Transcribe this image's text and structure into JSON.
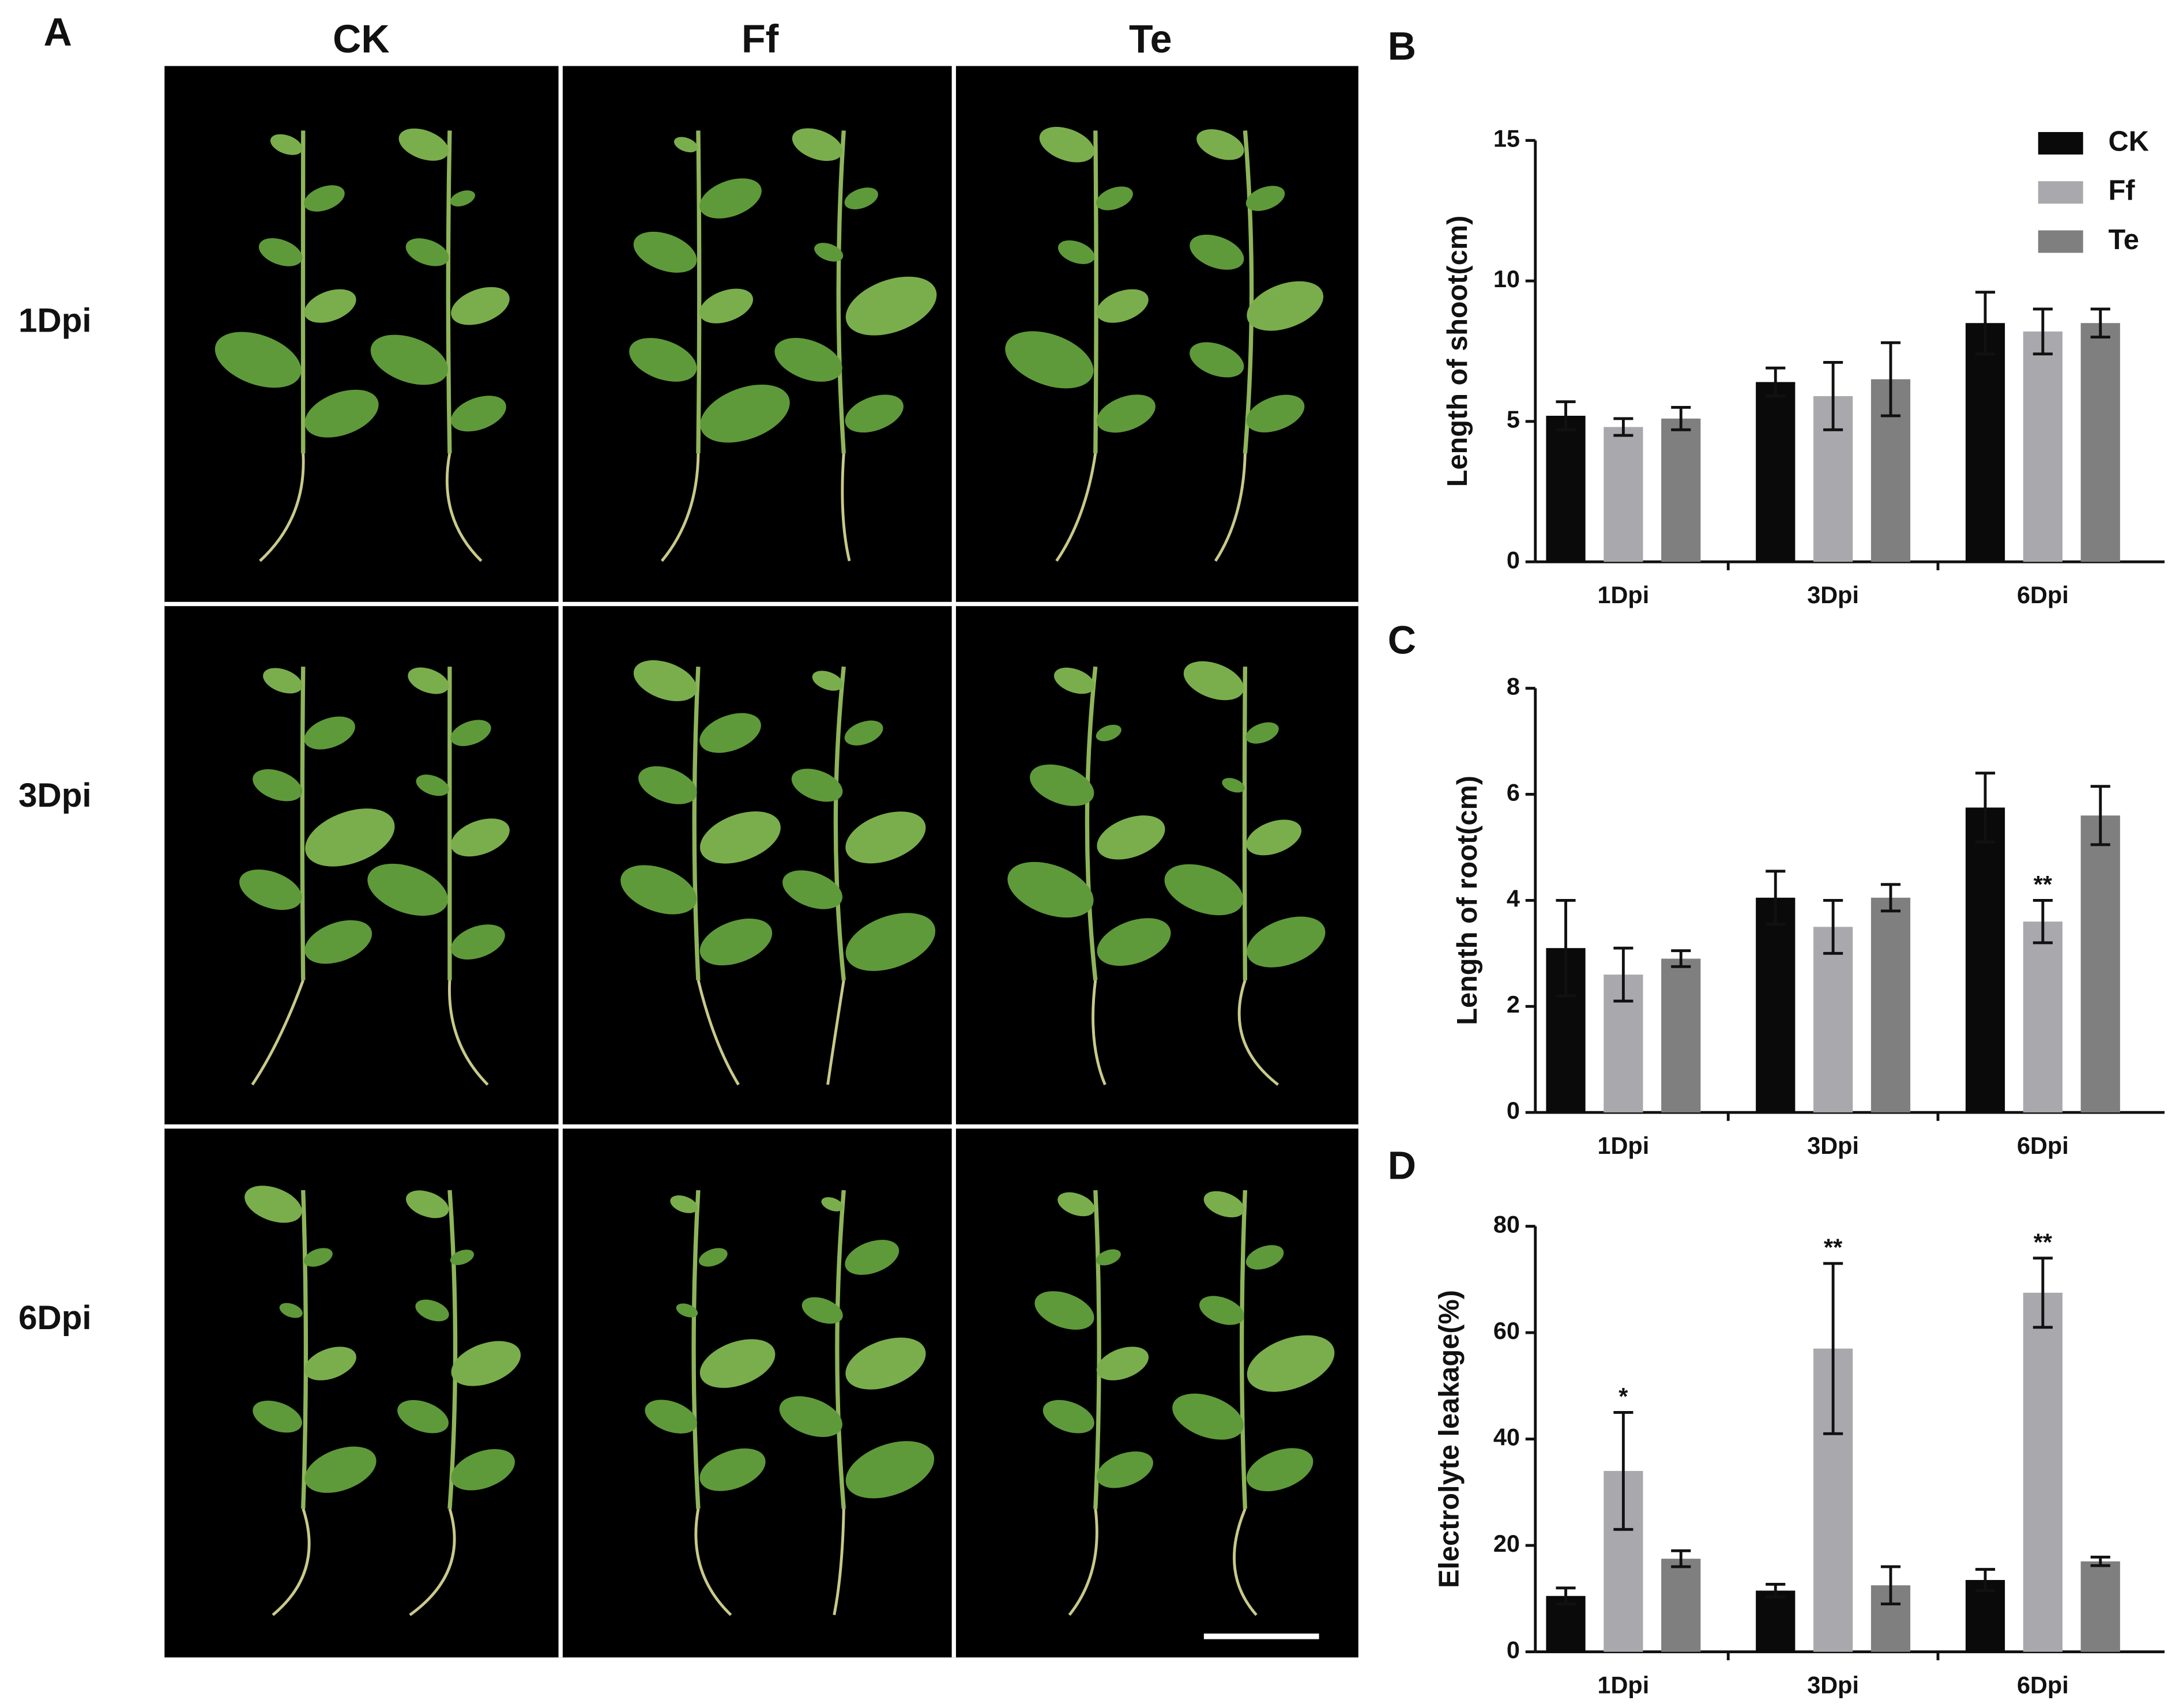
{
  "panel_a": {
    "label": "A",
    "columns": [
      "CK",
      "Ff",
      "Te"
    ],
    "rows": [
      "1Dpi",
      "3Dpi",
      "6Dpi"
    ]
  },
  "chart_data": [
    {
      "type": "bar",
      "label": "B",
      "y_label": "Length of shoot(cm)",
      "categories": [
        "1Dpi",
        "3Dpi",
        "6Dpi"
      ],
      "series": [
        {
          "name": "CK",
          "color": "#0a0a0a",
          "values": [
            5.2,
            6.4,
            8.5
          ],
          "errors": [
            0.5,
            0.5,
            1.1
          ]
        },
        {
          "name": "Ff",
          "color": "#a9a9ad",
          "values": [
            4.8,
            5.9,
            8.2
          ],
          "errors": [
            0.3,
            1.2,
            0.8
          ]
        },
        {
          "name": "Te",
          "color": "#7f7f7f",
          "values": [
            5.1,
            6.5,
            8.5
          ],
          "errors": [
            0.4,
            1.3,
            0.5
          ]
        }
      ],
      "ylim": [
        0,
        15
      ],
      "yticks": [
        0,
        5,
        10,
        15
      ],
      "legend": "top-right"
    },
    {
      "type": "bar",
      "label": "C",
      "y_label": "Length of root(cm)",
      "categories": [
        "1Dpi",
        "3Dpi",
        "6Dpi"
      ],
      "series": [
        {
          "name": "CK",
          "color": "#0a0a0a",
          "values": [
            3.1,
            4.05,
            5.75
          ],
          "errors": [
            0.9,
            0.5,
            0.65
          ]
        },
        {
          "name": "Ff",
          "color": "#a9a9ad",
          "values": [
            2.6,
            3.5,
            3.6
          ],
          "errors": [
            0.5,
            0.5,
            0.4
          ],
          "labels": [
            null,
            null,
            "**"
          ]
        },
        {
          "name": "Te",
          "color": "#7f7f7f",
          "values": [
            2.9,
            4.05,
            5.6
          ],
          "errors": [
            0.15,
            0.25,
            0.55
          ]
        }
      ],
      "ylim": [
        0,
        8
      ],
      "yticks": [
        0,
        2,
        4,
        6,
        8
      ]
    },
    {
      "type": "bar",
      "label": "D",
      "y_label": "Electrolyte leakage(%)",
      "categories": [
        "1Dpi",
        "3Dpi",
        "6Dpi"
      ],
      "series": [
        {
          "name": "CK",
          "color": "#0a0a0a",
          "values": [
            10.5,
            11.5,
            13.5
          ],
          "errors": [
            1.5,
            1.2,
            2
          ]
        },
        {
          "name": "Ff",
          "color": "#a9a9ad",
          "values": [
            34,
            57,
            67.5
          ],
          "errors": [
            11,
            16,
            6.5
          ],
          "labels": [
            "*",
            "**",
            "**"
          ]
        },
        {
          "name": "Te",
          "color": "#7f7f7f",
          "values": [
            17.5,
            12.5,
            17
          ],
          "errors": [
            1.5,
            3.5,
            0.8
          ]
        }
      ],
      "ylim": [
        0,
        80
      ],
      "yticks": [
        0,
        20,
        40,
        60,
        80
      ]
    }
  ]
}
